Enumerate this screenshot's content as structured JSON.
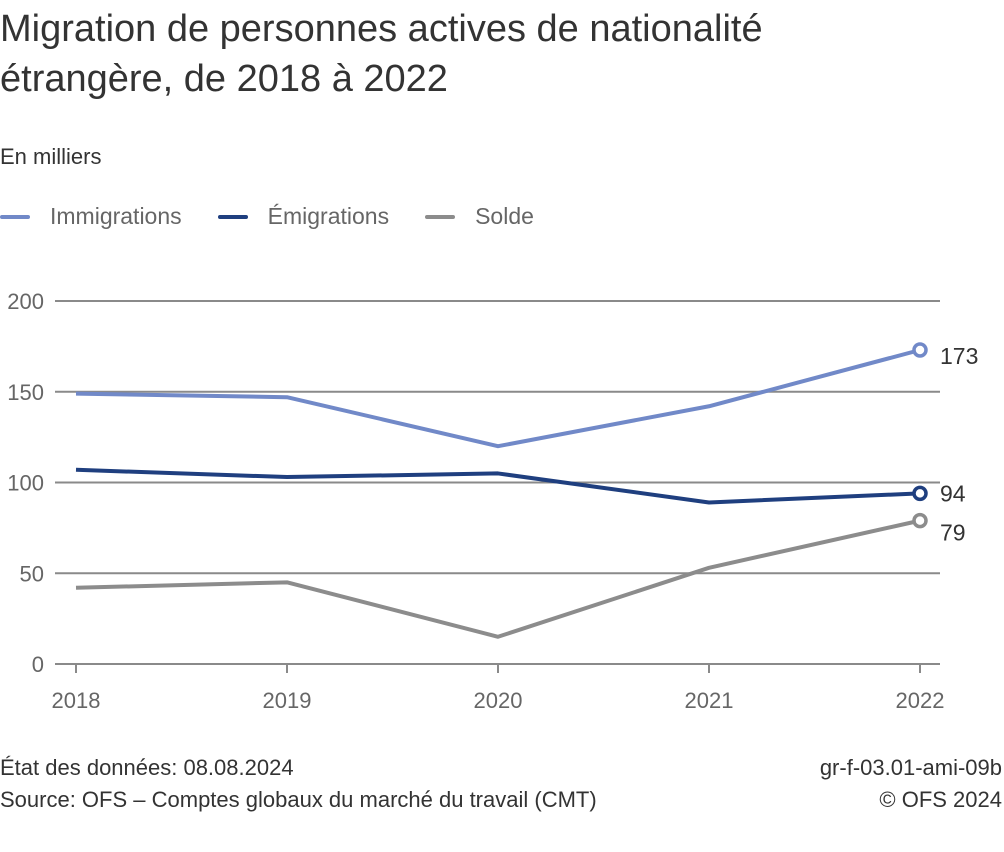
{
  "chart_data": {
    "type": "line",
    "title": "Migration de personnes actives de nationalité étrangère, de 2018 à 2022",
    "subtitle": "En milliers",
    "xlabel": "",
    "ylabel": "",
    "x": [
      "2018",
      "2019",
      "2020",
      "2021",
      "2022"
    ],
    "yticks": [
      0,
      50,
      100,
      150,
      200
    ],
    "ylim": [
      0,
      200
    ],
    "grid": true,
    "legend_position": "top-left",
    "series": [
      {
        "name": "Immigrations",
        "color": "#7189c8",
        "values": [
          149,
          147,
          120,
          142,
          173
        ],
        "end_label": "173"
      },
      {
        "name": "Émigrations",
        "color": "#1f3f7f",
        "values": [
          107,
          103,
          105,
          89,
          94
        ],
        "end_label": "94"
      },
      {
        "name": "Solde",
        "color": "#8c8c8c",
        "values": [
          42,
          45,
          15,
          53,
          79
        ],
        "end_label": "79"
      }
    ]
  },
  "footer": {
    "date_label": "État des données: 08.08.2024",
    "source": "Source: OFS – Comptes globaux du marché du travail (CMT)",
    "chart_id": "gr-f-03.01-ami-09b",
    "copyright": "© OFS 2024"
  }
}
